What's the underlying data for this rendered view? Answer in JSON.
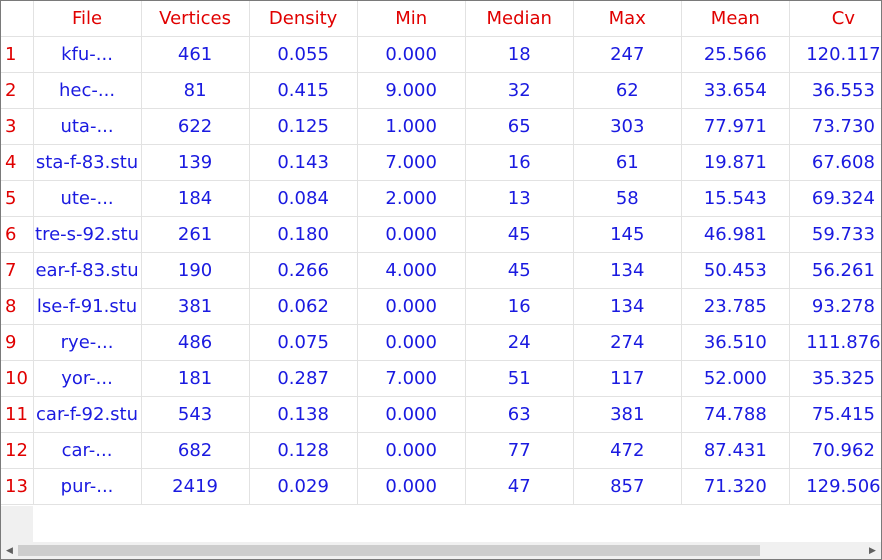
{
  "columns": [
    "File",
    "Vertices",
    "Density",
    "Min",
    "Median",
    "Max",
    "Mean",
    "Cv"
  ],
  "rows": [
    {
      "num": "1",
      "cells": [
        "kfu-...",
        "461",
        "0.055",
        "0.000",
        "18",
        "247",
        "25.566",
        "120.117"
      ]
    },
    {
      "num": "2",
      "cells": [
        "hec-...",
        "81",
        "0.415",
        "9.000",
        "32",
        "62",
        "33.654",
        "36.553"
      ]
    },
    {
      "num": "3",
      "cells": [
        "uta-...",
        "622",
        "0.125",
        "1.000",
        "65",
        "303",
        "77.971",
        "73.730"
      ]
    },
    {
      "num": "4",
      "cells": [
        "sta-f-83.stu",
        "139",
        "0.143",
        "7.000",
        "16",
        "61",
        "19.871",
        "67.608"
      ]
    },
    {
      "num": "5",
      "cells": [
        "ute-...",
        "184",
        "0.084",
        "2.000",
        "13",
        "58",
        "15.543",
        "69.324"
      ]
    },
    {
      "num": "6",
      "cells": [
        "tre-s-92.stu",
        "261",
        "0.180",
        "0.000",
        "45",
        "145",
        "46.981",
        "59.733"
      ]
    },
    {
      "num": "7",
      "cells": [
        "ear-f-83.stu",
        "190",
        "0.266",
        "4.000",
        "45",
        "134",
        "50.453",
        "56.261"
      ]
    },
    {
      "num": "8",
      "cells": [
        "lse-f-91.stu",
        "381",
        "0.062",
        "0.000",
        "16",
        "134",
        "23.785",
        "93.278"
      ]
    },
    {
      "num": "9",
      "cells": [
        "rye-...",
        "486",
        "0.075",
        "0.000",
        "24",
        "274",
        "36.510",
        "111.876"
      ]
    },
    {
      "num": "10",
      "cells": [
        "yor-...",
        "181",
        "0.287",
        "7.000",
        "51",
        "117",
        "52.000",
        "35.325"
      ]
    },
    {
      "num": "11",
      "cells": [
        "car-f-92.stu",
        "543",
        "0.138",
        "0.000",
        "63",
        "381",
        "74.788",
        "75.415"
      ]
    },
    {
      "num": "12",
      "cells": [
        "car-...",
        "682",
        "0.128",
        "0.000",
        "77",
        "472",
        "87.431",
        "70.962"
      ]
    },
    {
      "num": "13",
      "cells": [
        "pur-...",
        "2419",
        "0.029",
        "0.000",
        "47",
        "857",
        "71.320",
        "129.506"
      ]
    }
  ],
  "colors": {
    "header_text": "#e00000",
    "cell_text": "#1a1ae0",
    "grid_line": "#e2e2e2"
  },
  "scrollbar": {
    "left_arrow_icon": "triangle-left-icon",
    "right_arrow_icon": "triangle-right-icon"
  }
}
